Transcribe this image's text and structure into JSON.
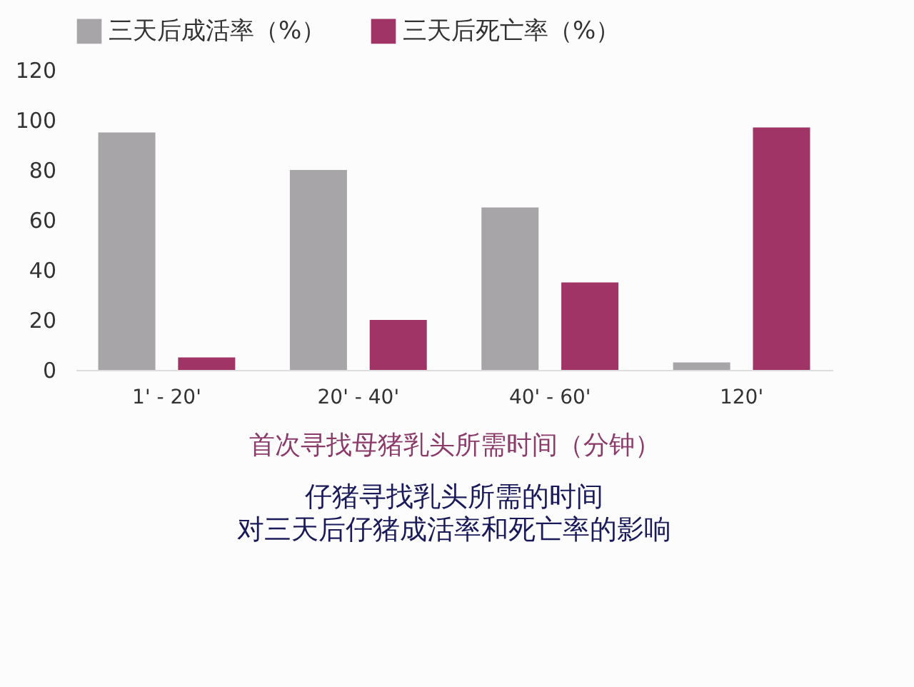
{
  "chart_data": {
    "type": "bar",
    "title": "仔猪寻找乳头所需的时间",
    "subtitle": "对三天后仔猪成活率和死亡率的影响",
    "xlabel": "首次寻找母猪乳头所需时间（分钟）",
    "categories": [
      "1' - 20'",
      "20' - 40'",
      "40' - 60'",
      "120'"
    ],
    "series": [
      {
        "name": "三天后成活率（%）",
        "color": "#a7a5a8",
        "values": [
          95,
          80,
          65,
          3
        ]
      },
      {
        "name": "三天后死亡率（%）",
        "color": "#a03466",
        "values": [
          5,
          20,
          35,
          97
        ]
      }
    ],
    "ylim": [
      0,
      120
    ],
    "yticks": [
      0,
      20,
      40,
      60,
      80,
      100,
      120
    ],
    "grid": false,
    "legend": "top"
  }
}
